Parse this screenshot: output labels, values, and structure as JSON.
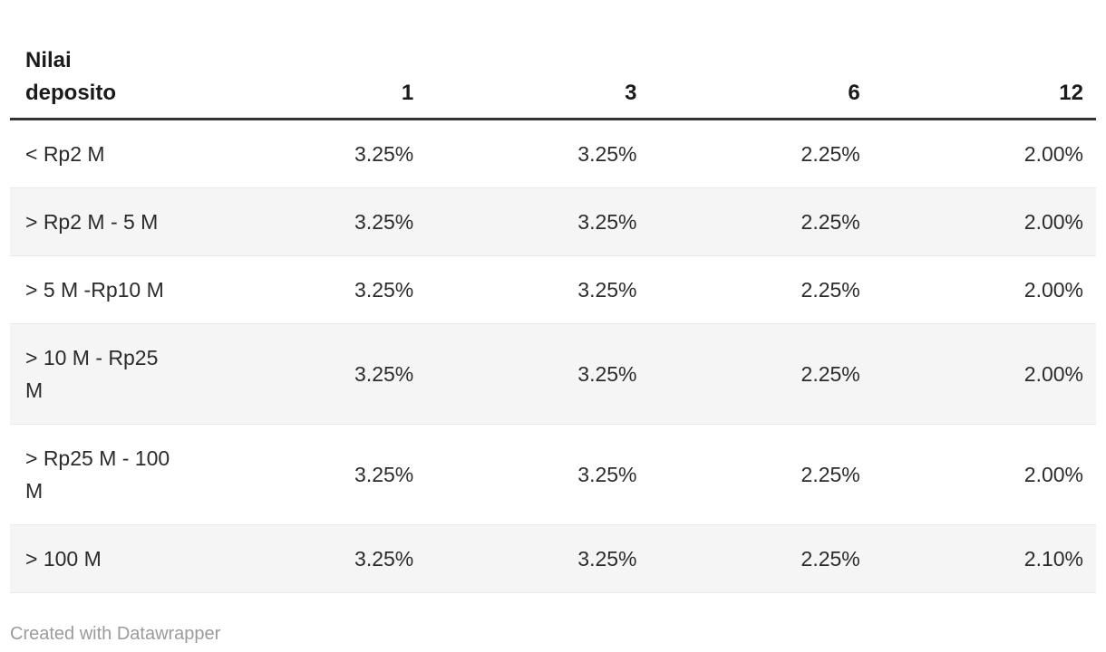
{
  "colors": {
    "header_rule": "#333333",
    "row_divider": "#e8e8e8",
    "alt_row_bg": "#f5f5f5",
    "header_text": "#1a1a1a",
    "body_text": "#2b2b2b",
    "attribution_text": "#9b9b9b"
  },
  "table": {
    "header": {
      "label_col": "Nilai\ndeposito",
      "columns": [
        "1",
        "3",
        "6",
        "12"
      ]
    },
    "rows": [
      {
        "label": "< Rp2 M",
        "values": [
          "3.25%",
          "3.25%",
          "2.25%",
          "2.00%"
        ]
      },
      {
        "label": "> Rp2 M - 5 M",
        "values": [
          "3.25%",
          "3.25%",
          "2.25%",
          "2.00%"
        ]
      },
      {
        "label": "> 5 M -Rp10 M",
        "values": [
          "3.25%",
          "3.25%",
          "2.25%",
          "2.00%"
        ]
      },
      {
        "label": "> 10 M - Rp25\nM",
        "values": [
          "3.25%",
          "3.25%",
          "2.25%",
          "2.00%"
        ]
      },
      {
        "label": "> Rp25 M - 100\nM",
        "values": [
          "3.25%",
          "3.25%",
          "2.25%",
          "2.00%"
        ]
      },
      {
        "label": "> 100 M",
        "values": [
          "3.25%",
          "3.25%",
          "2.25%",
          "2.10%"
        ]
      }
    ]
  },
  "footer": {
    "attribution": "Created with Datawrapper"
  },
  "chart_data": {
    "type": "table",
    "title": "",
    "columns": [
      "Nilai deposito",
      "1",
      "3",
      "6",
      "12"
    ],
    "row_labels": [
      "< Rp2 M",
      "> Rp2 M - 5 M",
      "> 5 M -Rp10 M",
      "> 10 M - Rp25 M",
      "> Rp25 M - 100 M",
      "> 100 M"
    ],
    "series": [
      {
        "name": "1",
        "values": [
          3.25,
          3.25,
          3.25,
          3.25,
          3.25,
          3.25
        ]
      },
      {
        "name": "3",
        "values": [
          3.25,
          3.25,
          3.25,
          3.25,
          3.25,
          3.25
        ]
      },
      {
        "name": "6",
        "values": [
          2.25,
          2.25,
          2.25,
          2.25,
          2.25,
          2.25
        ]
      },
      {
        "name": "12",
        "values": [
          2.0,
          2.0,
          2.0,
          2.0,
          2.0,
          2.1
        ]
      }
    ],
    "value_unit": "%",
    "layout": {
      "alternating_rows": true,
      "header_rule": true,
      "grid": "horizontal-only"
    }
  }
}
